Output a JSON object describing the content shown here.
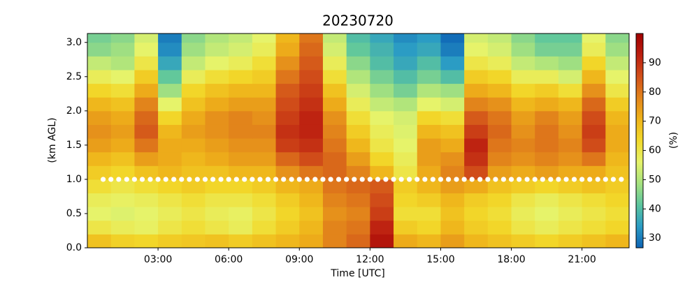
{
  "chart_data": {
    "type": "heatmap",
    "title": "20230720",
    "xlabel": "Time [UTC]",
    "ylabel": "(km AGL)",
    "colorbar_label": "(%)",
    "xlim": [
      0,
      23
    ],
    "ylim": [
      0,
      3.13
    ],
    "xticks": [
      {
        "value": 3,
        "label": "03:00"
      },
      {
        "value": 6,
        "label": "06:00"
      },
      {
        "value": 9,
        "label": "09:00"
      },
      {
        "value": 12,
        "label": "12:00"
      },
      {
        "value": 15,
        "label": "15:00"
      },
      {
        "value": 18,
        "label": "18:00"
      },
      {
        "value": 21,
        "label": "21:00"
      }
    ],
    "yticks": [
      {
        "value": 0,
        "label": "0.0"
      },
      {
        "value": 0.5,
        "label": "0.5"
      },
      {
        "value": 1,
        "label": "1.0"
      },
      {
        "value": 1.5,
        "label": "1.5"
      },
      {
        "value": 2,
        "label": "2.0"
      },
      {
        "value": 2.5,
        "label": "2.5"
      },
      {
        "value": 3,
        "label": "3.0"
      }
    ],
    "clim": [
      26.7,
      100
    ],
    "cticks": [
      30,
      40,
      50,
      60,
      70,
      80,
      90
    ],
    "colormap": [
      "#0d63b5",
      "#2b9cc4",
      "#5cc59e",
      "#a6e27f",
      "#e6f36a",
      "#f2d92b",
      "#efb41a",
      "#e2841b",
      "#d2501a",
      "#bc1f10",
      "#a00000"
    ],
    "xbins": [
      0,
      1,
      2,
      3,
      4,
      5,
      6,
      7,
      8,
      9,
      10,
      11,
      12,
      13,
      14,
      15,
      16,
      17,
      18,
      19,
      20,
      21,
      22,
      23
    ],
    "ybins": [
      0,
      0.2,
      0.4,
      0.6,
      0.8,
      1.0,
      1.2,
      1.4,
      1.6,
      1.8,
      2.0,
      2.2,
      2.4,
      2.6,
      2.8,
      3.0,
      3.2
    ],
    "values": [
      [
        68,
        65,
        64,
        66,
        67,
        68,
        66,
        68,
        70,
        72,
        78,
        82,
        95,
        72,
        70,
        74,
        70,
        68,
        66,
        64,
        66,
        68,
        70
      ],
      [
        60,
        58,
        57,
        60,
        62,
        60,
        58,
        62,
        66,
        70,
        78,
        80,
        92,
        66,
        64,
        70,
        66,
        64,
        60,
        58,
        60,
        62,
        64
      ],
      [
        56,
        55,
        56,
        58,
        60,
        58,
        57,
        60,
        64,
        68,
        76,
        78,
        88,
        62,
        62,
        68,
        64,
        62,
        58,
        56,
        58,
        60,
        62
      ],
      [
        58,
        57,
        58,
        60,
        62,
        60,
        60,
        62,
        66,
        70,
        78,
        80,
        86,
        64,
        66,
        70,
        66,
        64,
        60,
        58,
        60,
        62,
        64
      ],
      [
        62,
        60,
        62,
        64,
        66,
        64,
        64,
        66,
        70,
        72,
        80,
        82,
        84,
        66,
        70,
        74,
        72,
        68,
        66,
        64,
        66,
        68,
        66
      ],
      [
        66,
        64,
        68,
        70,
        68,
        68,
        70,
        70,
        76,
        80,
        82,
        78,
        70,
        60,
        72,
        78,
        86,
        74,
        72,
        74,
        72,
        72,
        68
      ],
      [
        70,
        68,
        74,
        72,
        70,
        72,
        74,
        74,
        82,
        86,
        82,
        74,
        64,
        58,
        74,
        76,
        90,
        78,
        76,
        78,
        76,
        80,
        70
      ],
      [
        74,
        72,
        80,
        72,
        72,
        74,
        76,
        76,
        88,
        90,
        80,
        70,
        60,
        56,
        74,
        72,
        92,
        80,
        78,
        80,
        78,
        86,
        72
      ],
      [
        76,
        74,
        84,
        70,
        74,
        76,
        78,
        78,
        90,
        92,
        78,
        66,
        58,
        55,
        70,
        68,
        88,
        82,
        76,
        80,
        76,
        88,
        72
      ],
      [
        74,
        72,
        82,
        64,
        72,
        76,
        78,
        76,
        88,
        92,
        76,
        62,
        56,
        54,
        64,
        62,
        84,
        80,
        74,
        78,
        74,
        86,
        70
      ],
      [
        70,
        68,
        78,
        56,
        68,
        72,
        74,
        74,
        86,
        90,
        72,
        58,
        52,
        50,
        56,
        54,
        78,
        76,
        70,
        72,
        70,
        82,
        66
      ],
      [
        64,
        62,
        72,
        48,
        64,
        68,
        70,
        70,
        84,
        88,
        68,
        54,
        48,
        44,
        50,
        48,
        72,
        70,
        64,
        66,
        62,
        76,
        60
      ],
      [
        58,
        56,
        66,
        42,
        58,
        62,
        64,
        66,
        80,
        86,
        62,
        50,
        44,
        40,
        44,
        40,
        66,
        64,
        58,
        58,
        54,
        70,
        56
      ],
      [
        52,
        50,
        60,
        36,
        52,
        56,
        58,
        62,
        76,
        84,
        58,
        46,
        40,
        36,
        40,
        34,
        60,
        58,
        52,
        50,
        48,
        64,
        52
      ],
      [
        46,
        48,
        56,
        32,
        48,
        52,
        54,
        58,
        72,
        82,
        54,
        42,
        38,
        34,
        36,
        30,
        56,
        54,
        48,
        44,
        44,
        58,
        48
      ],
      [
        44,
        46,
        54,
        30,
        46,
        50,
        52,
        56,
        70,
        80,
        52,
        40,
        36,
        32,
        34,
        28,
        54,
        52,
        46,
        42,
        42,
        56,
        46
      ]
    ],
    "overlay": {
      "type": "scatter",
      "color": "#ffffff",
      "x": [
        0.67,
        1,
        1.33,
        1.67,
        2,
        2.33,
        2.67,
        3,
        3.33,
        3.67,
        4,
        4.33,
        4.67,
        5,
        5.33,
        5.67,
        6,
        6.33,
        6.67,
        7,
        7.33,
        7.67,
        8,
        8.33,
        8.67,
        9,
        9.33,
        9.67,
        10,
        10.33,
        10.67,
        11,
        11.33,
        11.67,
        12,
        12.33,
        12.67,
        13,
        13.33,
        13.67,
        14,
        14.33,
        14.67,
        15,
        15.33,
        15.67,
        16,
        16.33,
        16.67,
        17,
        17.33,
        17.67,
        18,
        18.33,
        18.67,
        19,
        19.33,
        19.67,
        20,
        20.33,
        20.67,
        21,
        21.33,
        21.67,
        22,
        22.33,
        22.67
      ],
      "y": [
        1,
        1,
        1,
        1,
        1,
        1,
        1,
        1,
        1,
        1,
        1,
        1,
        1,
        1,
        1,
        1,
        1,
        1,
        1,
        1,
        1,
        1,
        1,
        1,
        1,
        1,
        1,
        1,
        1,
        1,
        1,
        1,
        1,
        1,
        1,
        1,
        1,
        1,
        1,
        1,
        1,
        1,
        1,
        1,
        1,
        1,
        1,
        1,
        1,
        1,
        1,
        1,
        1,
        1,
        1,
        1,
        1,
        1,
        1,
        1,
        1,
        1,
        1,
        1,
        1,
        1,
        1
      ]
    }
  }
}
